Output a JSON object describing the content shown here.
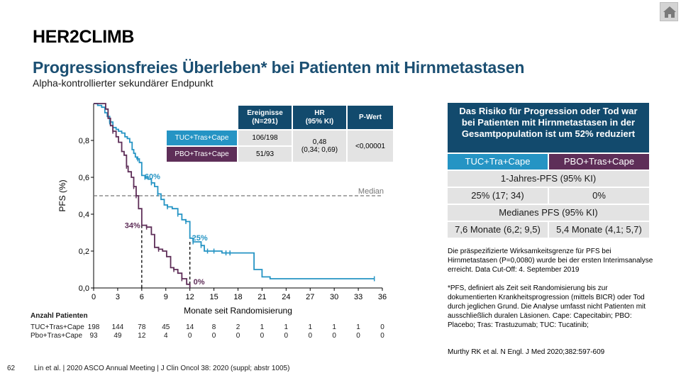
{
  "header": {
    "title": "HER2CLIMB",
    "subtitle": "Progressionsfreies Überleben* bei Patienten mit Hirnmetastasen",
    "subsubtitle": "Alpha-kontrollierter sekundärer Endpunkt",
    "home_icon": "home-icon"
  },
  "chart_data": {
    "type": "line",
    "subtype": "kaplan-meier",
    "xlabel": "Monate seit Randomisierung",
    "ylabel": "PFS (%)",
    "xlim": [
      0,
      36
    ],
    "ylim": [
      0,
      1.0
    ],
    "x_ticks": [
      "0",
      "3",
      "6",
      "9",
      "12",
      "15",
      "18",
      "21",
      "24",
      "27",
      "30",
      "33",
      "36"
    ],
    "y_ticks": [
      "0,0",
      "0,2",
      "0,4",
      "0,6",
      "0,8"
    ],
    "y_tick_values": [
      0,
      0.2,
      0.4,
      0.6,
      0.8
    ],
    "median_line": {
      "y": 0.5,
      "label": "Median"
    },
    "series": [
      {
        "name": "TUC+Tras+Cape",
        "color": "#2594c4",
        "x": [
          0,
          0.5,
          1,
          1.4,
          1.7,
          2,
          2.4,
          2.8,
          3.1,
          3.5,
          3.9,
          4.2,
          4.5,
          4.8,
          5,
          5.2,
          5.4,
          5.7,
          6,
          6.4,
          6.8,
          7.2,
          7.6,
          8,
          8.4,
          8.8,
          9.2,
          9.8,
          10.5,
          11,
          11.5,
          12,
          12.4,
          12.8,
          13.4,
          13.8,
          14.2,
          14.6,
          15,
          15.5,
          16,
          16.5,
          17,
          17.5,
          18,
          18.5,
          19,
          20,
          21,
          22,
          35
        ],
        "y": [
          1.0,
          0.99,
          0.98,
          0.95,
          0.93,
          0.9,
          0.87,
          0.86,
          0.85,
          0.84,
          0.82,
          0.81,
          0.79,
          0.75,
          0.73,
          0.71,
          0.7,
          0.68,
          0.61,
          0.6,
          0.59,
          0.57,
          0.55,
          0.51,
          0.48,
          0.45,
          0.44,
          0.43,
          0.4,
          0.37,
          0.36,
          0.27,
          0.25,
          0.25,
          0.23,
          0.2,
          0.2,
          0.2,
          0.2,
          0.2,
          0.19,
          0.19,
          0.19,
          0.19,
          0.19,
          0.19,
          0.19,
          0.1,
          0.06,
          0.05,
          0.05
        ],
        "censor_x": [
          2,
          5.5,
          6.4,
          7.2,
          8,
          9.2,
          10.5,
          11.5,
          12.4,
          13.4,
          14.2,
          15,
          16.5,
          17,
          35
        ]
      },
      {
        "name": "PBO+Tras+Cape",
        "color": "#5e2e58",
        "x": [
          0,
          1.5,
          1.8,
          2.1,
          2.4,
          2.8,
          3.1,
          3.5,
          3.8,
          4.1,
          4.3,
          4.7,
          5,
          5.3,
          5.6,
          6,
          6.6,
          7.2,
          7.6,
          8.1,
          8.6,
          9.1,
          9.6,
          10,
          10.5,
          11,
          11.6,
          12
        ],
        "y": [
          1.0,
          0.97,
          0.92,
          0.88,
          0.85,
          0.82,
          0.79,
          0.74,
          0.72,
          0.66,
          0.63,
          0.6,
          0.55,
          0.5,
          0.43,
          0.34,
          0.33,
          0.29,
          0.22,
          0.21,
          0.2,
          0.17,
          0.11,
          0.1,
          0.08,
          0.05,
          0.02,
          0.0
        ],
        "censor_x": [
          2.4,
          4.1,
          5,
          5.3,
          6.6,
          8.1,
          10,
          11
        ]
      }
    ],
    "annotations": [
      {
        "text": "60%",
        "x": 6,
        "y": 0.61,
        "series": 0
      },
      {
        "text": "34%",
        "x": 6,
        "y": 0.34,
        "series": 1
      },
      {
        "text": "25%",
        "x": 12,
        "y": 0.25,
        "series": 0
      },
      {
        "text": "0%",
        "x": 12,
        "y": 0.0,
        "series": 1
      }
    ],
    "risk_table": {
      "title": "Anzahl Patienten",
      "rows": [
        {
          "label": "TUC+Tras+Cape",
          "values": [
            "198",
            "144",
            "78",
            "45",
            "14",
            "8",
            "2",
            "1",
            "1",
            "1",
            "1",
            "1",
            "0"
          ]
        },
        {
          "label": "Pbo+Tras+Cape",
          "values": [
            "93",
            "49",
            "12",
            "4",
            "0",
            "0",
            "0",
            "0",
            "0",
            "0",
            "0",
            "0",
            "0"
          ]
        }
      ]
    }
  },
  "summary_table": {
    "headers": [
      "Ereignisse\n(N=291)",
      "HR\n(95% KI)",
      "P-Wert"
    ],
    "rows": [
      {
        "label": "TUC+Tras+Cape",
        "events": "106/198"
      },
      {
        "label": "PBO+Tras+Cape",
        "events": "51/93"
      }
    ],
    "hr": "0,48\n(0,34; 0,69)",
    "p": "<0,00001"
  },
  "risk_box": {
    "header": "Das Risiko für Progression oder Tod war bei Patienten mit Hirnmetastasen in der Gesamtpopulation ist um 52% reduziert",
    "arm1": "TUC+Tra+Cape",
    "arm2": "PBO+Tras+Cape",
    "row1_label": "1-Jahres-PFS (95% KI)",
    "row1_a": "25% (17; 34)",
    "row1_b": "0%",
    "row2_label": "Medianes PFS (95% KI)",
    "row2_a": "7,6 Monate (6,2; 9,5)",
    "row2_b": "5,4 Monate (4,1; 5,7)"
  },
  "notes": {
    "note1": "Die präspezifizierte Wirksamkeitsgrenze für PFS bei Hirnmetastasen (P=0,0080) wurde bei der ersten Interimsanalyse erreicht. Data Cut-Off: 4. September 2019",
    "note2": "*PFS, definiert als Zeit seit Randomisierung bis zur dokumentierten Krankheitsprogression (mittels BICR) oder Tod durch jeglichen Grund. Die Analyse umfasst nicht Patienten mit ausschließlich duralen Läsionen. Cape: Capecitabin; PBO: Placebo; Tras: Trastuzumab; TUC: Tucatinib;",
    "note3": "Murthy RK et al. N Engl. J Med 2020;382:597-609"
  },
  "footer": {
    "page": "62",
    "reference": "Lin et al. | 2020 ASCO Annual Meeting | J Clin Oncol 38: 2020 (suppl; abstr 1005)"
  }
}
